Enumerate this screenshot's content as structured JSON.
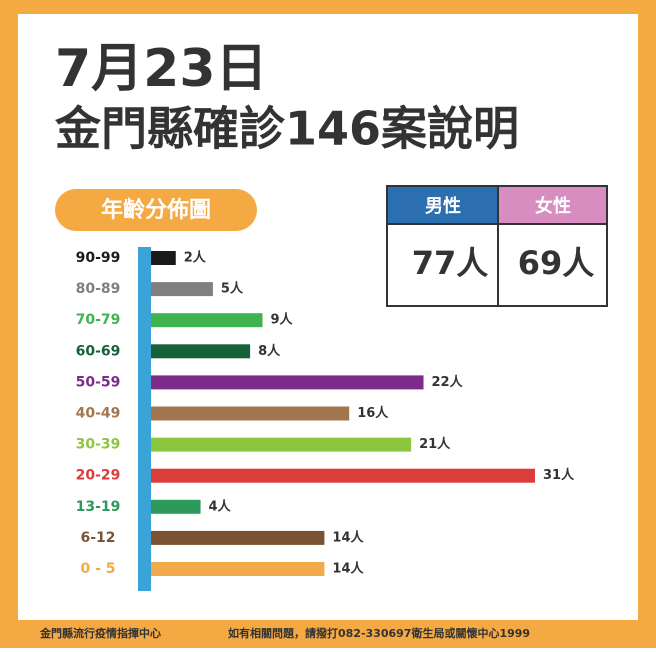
{
  "title": "7月23日",
  "subtitle": "金門縣確診146案說明",
  "gender_table": {
    "headers": [
      "男性",
      "女性"
    ],
    "cells": [
      "77人",
      "69人"
    ]
  },
  "chart_data": {
    "type": "bar",
    "orientation": "horizontal",
    "title": "年齡分佈圖",
    "categories": [
      "90-99",
      "80-89",
      "70-79",
      "60-69",
      "50-59",
      "40-49",
      "30-39",
      "20-29",
      "13-19",
      "6-12",
      "0 - 5"
    ],
    "values": [
      2,
      5,
      9,
      8,
      22,
      16,
      21,
      31,
      4,
      14,
      14
    ],
    "value_labels": [
      "2人",
      "5人",
      "9人",
      "8人",
      "22人",
      "16人",
      "21人",
      "31人",
      "4人",
      "14人",
      "14人"
    ],
    "colors": [
      "#1a1a1a",
      "#808080",
      "#3fb34f",
      "#16603a",
      "#7c2b8b",
      "#a3754f",
      "#8cc63f",
      "#db3d3b",
      "#2d9a5c",
      "#7b5333",
      "#f0aa4c"
    ],
    "label_colors": [
      "#1a1a1a",
      "#808080",
      "#3fb34f",
      "#16603a",
      "#7c2b8b",
      "#a3754f",
      "#8cc63f",
      "#db3d3b",
      "#2d9a5c",
      "#7b5333",
      "#f0aa4c"
    ]
  },
  "footer": {
    "left": "金門縣流行疫情指揮中心",
    "right": "如有相關問題，請撥打082-330697衛生局或關懷中心1999"
  }
}
